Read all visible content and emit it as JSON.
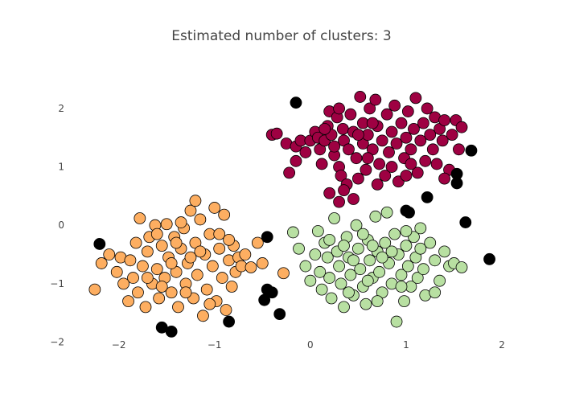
{
  "chart_data": {
    "type": "scatter",
    "title": "Estimated number of clusters: 3",
    "xlabel": "",
    "ylabel": "",
    "xlim": [
      -2.4,
      2.05
    ],
    "ylim": [
      -2.2,
      2.55
    ],
    "x_ticks": [
      -2,
      -1,
      0,
      1,
      2
    ],
    "x_tick_labels": [
      "−2",
      "−1",
      "0",
      "1",
      "2"
    ],
    "y_ticks": [
      -2,
      -1,
      0,
      1,
      2
    ],
    "y_tick_labels": [
      "−2",
      "−1",
      "0",
      "1",
      "2"
    ],
    "grid": false,
    "legend": "none",
    "colors": {
      "cluster_0": "#9e0142",
      "cluster_1": "#fdae61",
      "cluster_2": "#b8e0a2",
      "noise": "#000000",
      "marker_edge": "#000000"
    },
    "series": [
      {
        "color": "#9e0142",
        "points": [
          [
            -0.4,
            1.55
          ],
          [
            -0.35,
            1.57
          ],
          [
            -0.25,
            1.4
          ],
          [
            -0.15,
            1.35
          ],
          [
            -0.1,
            1.45
          ],
          [
            -0.22,
            0.9
          ],
          [
            -0.15,
            1.1
          ],
          [
            -0.05,
            1.25
          ],
          [
            0.0,
            1.45
          ],
          [
            0.05,
            1.6
          ],
          [
            0.08,
            1.5
          ],
          [
            0.1,
            1.3
          ],
          [
            0.12,
            1.05
          ],
          [
            0.15,
            1.45
          ],
          [
            0.18,
            1.7
          ],
          [
            0.2,
            1.95
          ],
          [
            0.22,
            1.55
          ],
          [
            0.25,
            1.2
          ],
          [
            0.28,
            1.85
          ],
          [
            0.3,
            1.0
          ],
          [
            0.3,
            2.0
          ],
          [
            0.32,
            0.85
          ],
          [
            0.34,
            1.65
          ],
          [
            0.35,
            1.45
          ],
          [
            0.38,
            0.7
          ],
          [
            0.4,
            1.3
          ],
          [
            0.42,
            1.9
          ],
          [
            0.45,
            1.6
          ],
          [
            0.48,
            1.15
          ],
          [
            0.5,
            0.8
          ],
          [
            0.52,
            2.2
          ],
          [
            0.55,
            1.75
          ],
          [
            0.55,
            1.4
          ],
          [
            0.58,
            0.95
          ],
          [
            0.6,
            1.55
          ],
          [
            0.62,
            2.0
          ],
          [
            0.65,
            1.3
          ],
          [
            0.68,
            2.15
          ],
          [
            0.7,
            1.7
          ],
          [
            0.72,
            1.05
          ],
          [
            0.75,
            1.45
          ],
          [
            0.78,
            0.85
          ],
          [
            0.8,
            1.9
          ],
          [
            0.82,
            1.25
          ],
          [
            0.85,
            1.6
          ],
          [
            0.88,
            2.05
          ],
          [
            0.9,
            1.4
          ],
          [
            0.92,
            0.75
          ],
          [
            0.95,
            1.75
          ],
          [
            0.98,
            1.15
          ],
          [
            1.0,
            1.5
          ],
          [
            1.02,
            1.95
          ],
          [
            1.05,
            1.3
          ],
          [
            1.08,
            1.65
          ],
          [
            1.1,
            2.18
          ],
          [
            1.12,
            0.9
          ],
          [
            1.15,
            1.45
          ],
          [
            1.18,
            1.75
          ],
          [
            1.2,
            1.1
          ],
          [
            1.22,
            2.0
          ],
          [
            1.25,
            1.55
          ],
          [
            1.28,
            1.3
          ],
          [
            1.3,
            1.85
          ],
          [
            1.32,
            1.05
          ],
          [
            1.35,
            1.65
          ],
          [
            1.38,
            1.45
          ],
          [
            1.4,
            1.8
          ],
          [
            1.45,
            0.95
          ],
          [
            1.48,
            1.55
          ],
          [
            1.52,
            1.8
          ],
          [
            1.55,
            1.3
          ],
          [
            1.58,
            1.68
          ],
          [
            0.2,
            0.55
          ],
          [
            0.3,
            0.4
          ],
          [
            0.35,
            0.6
          ],
          [
            0.45,
            0.45
          ],
          [
            0.6,
            1.15
          ],
          [
            0.7,
            0.7
          ],
          [
            1.0,
            0.85
          ],
          [
            1.4,
            0.8
          ],
          [
            1.05,
            1.05
          ],
          [
            0.85,
            1.0
          ],
          [
            0.65,
            1.75
          ],
          [
            0.5,
            1.55
          ],
          [
            0.15,
            1.65
          ],
          [
            0.25,
            1.35
          ]
        ]
      },
      {
        "color": "#fdae61",
        "points": [
          [
            -2.25,
            -1.1
          ],
          [
            -2.18,
            -0.65
          ],
          [
            -2.1,
            -0.5
          ],
          [
            -2.02,
            -0.8
          ],
          [
            -1.98,
            -0.55
          ],
          [
            -1.95,
            -1.0
          ],
          [
            -1.9,
            -1.3
          ],
          [
            -1.88,
            -0.6
          ],
          [
            -1.85,
            -0.9
          ],
          [
            -1.82,
            -0.3
          ],
          [
            -1.8,
            -1.15
          ],
          [
            -1.78,
            0.12
          ],
          [
            -1.75,
            -0.7
          ],
          [
            -1.72,
            -1.4
          ],
          [
            -1.7,
            -0.45
          ],
          [
            -1.68,
            -0.2
          ],
          [
            -1.65,
            -1.0
          ],
          [
            -1.62,
            0.0
          ],
          [
            -1.6,
            -0.75
          ],
          [
            -1.58,
            -1.25
          ],
          [
            -1.55,
            -0.35
          ],
          [
            -1.52,
            -0.9
          ],
          [
            -1.5,
            0.02
          ],
          [
            -1.48,
            -0.55
          ],
          [
            -1.45,
            -1.15
          ],
          [
            -1.42,
            -0.2
          ],
          [
            -1.4,
            -0.8
          ],
          [
            -1.38,
            -1.4
          ],
          [
            -1.35,
            -0.4
          ],
          [
            -1.32,
            -0.05
          ],
          [
            -1.3,
            -1.0
          ],
          [
            -1.28,
            -0.65
          ],
          [
            -1.25,
            0.25
          ],
          [
            -1.22,
            -1.25
          ],
          [
            -1.2,
            -0.3
          ],
          [
            -1.18,
            -0.85
          ],
          [
            -1.15,
            0.1
          ],
          [
            -1.12,
            -1.55
          ],
          [
            -1.1,
            -0.5
          ],
          [
            -1.08,
            -1.1
          ],
          [
            -1.05,
            -0.15
          ],
          [
            -1.02,
            -0.7
          ],
          [
            -1.0,
            0.3
          ],
          [
            -0.98,
            -1.3
          ],
          [
            -0.95,
            -0.4
          ],
          [
            -0.92,
            -0.9
          ],
          [
            -0.9,
            0.18
          ],
          [
            -0.88,
            -1.45
          ],
          [
            -0.85,
            -0.6
          ],
          [
            -0.82,
            -1.05
          ],
          [
            -0.8,
            -0.35
          ],
          [
            -0.78,
            -0.8
          ],
          [
            -0.75,
            -0.55
          ],
          [
            -0.72,
            -0.7
          ],
          [
            -0.68,
            -0.5
          ],
          [
            -0.62,
            -0.72
          ],
          [
            -0.55,
            -0.3
          ],
          [
            -0.5,
            -0.65
          ],
          [
            -0.28,
            -0.82
          ],
          [
            -1.3,
            -1.15
          ],
          [
            -1.6,
            -0.15
          ],
          [
            -1.7,
            -0.9
          ],
          [
            -1.35,
            0.05
          ],
          [
            -1.15,
            -0.45
          ],
          [
            -1.05,
            -1.35
          ],
          [
            -0.95,
            -0.15
          ],
          [
            -1.45,
            -0.65
          ],
          [
            -1.55,
            -1.05
          ],
          [
            -1.25,
            -0.55
          ],
          [
            -1.4,
            -0.3
          ],
          [
            -1.2,
            0.42
          ],
          [
            -0.85,
            -0.25
          ]
        ]
      },
      {
        "color": "#b8e0a2",
        "points": [
          [
            -0.18,
            -0.12
          ],
          [
            -0.12,
            -0.4
          ],
          [
            -0.05,
            -0.7
          ],
          [
            0.0,
            -0.95
          ],
          [
            0.05,
            -0.5
          ],
          [
            0.08,
            -0.1
          ],
          [
            0.1,
            -0.8
          ],
          [
            0.12,
            -1.1
          ],
          [
            0.15,
            -0.3
          ],
          [
            0.18,
            -0.55
          ],
          [
            0.2,
            -0.9
          ],
          [
            0.22,
            -1.25
          ],
          [
            0.25,
            0.12
          ],
          [
            0.28,
            -0.45
          ],
          [
            0.3,
            -0.7
          ],
          [
            0.32,
            -1.0
          ],
          [
            0.35,
            -1.4
          ],
          [
            0.38,
            -0.2
          ],
          [
            0.4,
            -0.55
          ],
          [
            0.42,
            -0.85
          ],
          [
            0.45,
            -1.2
          ],
          [
            0.48,
            0.0
          ],
          [
            0.5,
            -0.4
          ],
          [
            0.52,
            -0.75
          ],
          [
            0.55,
            -1.05
          ],
          [
            0.58,
            -1.35
          ],
          [
            0.6,
            -0.25
          ],
          [
            0.62,
            -0.6
          ],
          [
            0.65,
            -0.9
          ],
          [
            0.68,
            0.15
          ],
          [
            0.7,
            -0.45
          ],
          [
            0.72,
            -0.8
          ],
          [
            0.75,
            -1.15
          ],
          [
            0.78,
            -0.3
          ],
          [
            0.8,
            0.22
          ],
          [
            0.82,
            -0.65
          ],
          [
            0.85,
            -1.0
          ],
          [
            0.88,
            -0.15
          ],
          [
            0.9,
            -1.65
          ],
          [
            0.92,
            -0.5
          ],
          [
            0.95,
            -0.85
          ],
          [
            0.98,
            -1.3
          ],
          [
            1.0,
            -0.35
          ],
          [
            1.02,
            -0.7
          ],
          [
            1.05,
            -1.05
          ],
          [
            1.08,
            -0.2
          ],
          [
            1.1,
            -0.55
          ],
          [
            1.12,
            -0.9
          ],
          [
            1.15,
            -0.4
          ],
          [
            1.18,
            -0.75
          ],
          [
            1.2,
            -1.2
          ],
          [
            1.25,
            -0.3
          ],
          [
            1.3,
            -0.6
          ],
          [
            1.35,
            -0.95
          ],
          [
            1.4,
            -0.45
          ],
          [
            1.45,
            -0.7
          ],
          [
            1.5,
            -0.65
          ],
          [
            1.58,
            -0.72
          ],
          [
            1.3,
            -1.15
          ],
          [
            0.45,
            -0.6
          ],
          [
            0.6,
            -0.95
          ],
          [
            0.75,
            -0.55
          ],
          [
            0.35,
            -0.35
          ],
          [
            0.85,
            -0.45
          ],
          [
            1.0,
            -0.1
          ],
          [
            0.2,
            -0.25
          ],
          [
            0.55,
            -0.15
          ],
          [
            0.95,
            -1.05
          ],
          [
            0.7,
            -1.3
          ],
          [
            1.15,
            -0.05
          ],
          [
            0.4,
            -1.15
          ],
          [
            0.65,
            -0.35
          ]
        ]
      },
      {
        "color": "#000000",
        "points": [
          [
            -2.2,
            -0.32
          ],
          [
            -1.55,
            -1.75
          ],
          [
            -1.45,
            -1.82
          ],
          [
            -0.85,
            -1.65
          ],
          [
            -0.45,
            -0.2
          ],
          [
            -0.45,
            -1.1
          ],
          [
            -0.4,
            -1.15
          ],
          [
            -0.48,
            -1.28
          ],
          [
            -0.32,
            -1.52
          ],
          [
            -0.15,
            2.1
          ],
          [
            1.0,
            0.25
          ],
          [
            1.03,
            0.22
          ],
          [
            1.22,
            0.48
          ],
          [
            1.53,
            0.72
          ],
          [
            1.53,
            0.88
          ],
          [
            1.62,
            0.05
          ],
          [
            1.68,
            1.28
          ],
          [
            1.87,
            -0.58
          ]
        ]
      }
    ]
  }
}
